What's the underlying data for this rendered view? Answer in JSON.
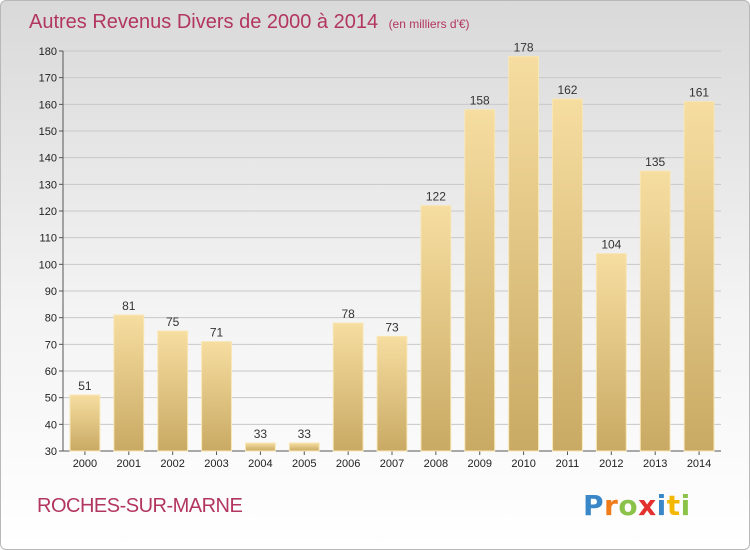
{
  "chart_data": {
    "type": "bar",
    "title": "Autres Revenus Divers de 2000 à 2014",
    "subtitle": "(en milliers d'€)",
    "categories": [
      "2000",
      "2001",
      "2002",
      "2003",
      "2004",
      "2005",
      "2006",
      "2007",
      "2008",
      "2009",
      "2010",
      "2011",
      "2012",
      "2013",
      "2014"
    ],
    "values": [
      51,
      81,
      75,
      71,
      33,
      33,
      78,
      73,
      122,
      158,
      178,
      162,
      104,
      135,
      161
    ],
    "data_labels": [
      "51",
      "81",
      "75",
      "71",
      "33",
      "33",
      "78",
      "73",
      "122",
      "158",
      "178",
      "162",
      "104",
      "135",
      "161"
    ],
    "ylim": [
      30,
      180
    ],
    "yticks": [
      "30",
      "40",
      "50",
      "60",
      "70",
      "80",
      "90",
      "100",
      "110",
      "120",
      "130",
      "140",
      "150",
      "160",
      "170",
      "180"
    ],
    "grid": true,
    "bar_color": "#e8c97a"
  },
  "footer": {
    "place_name": "ROCHES-SUR-MARNE",
    "logo_text": "Proxiti",
    "logo_colors": [
      "#3a87c8",
      "#f07d1a",
      "#8bc34a",
      "#e2312f",
      "#3a87c8",
      "#f5b800",
      "#8bc34a"
    ]
  }
}
